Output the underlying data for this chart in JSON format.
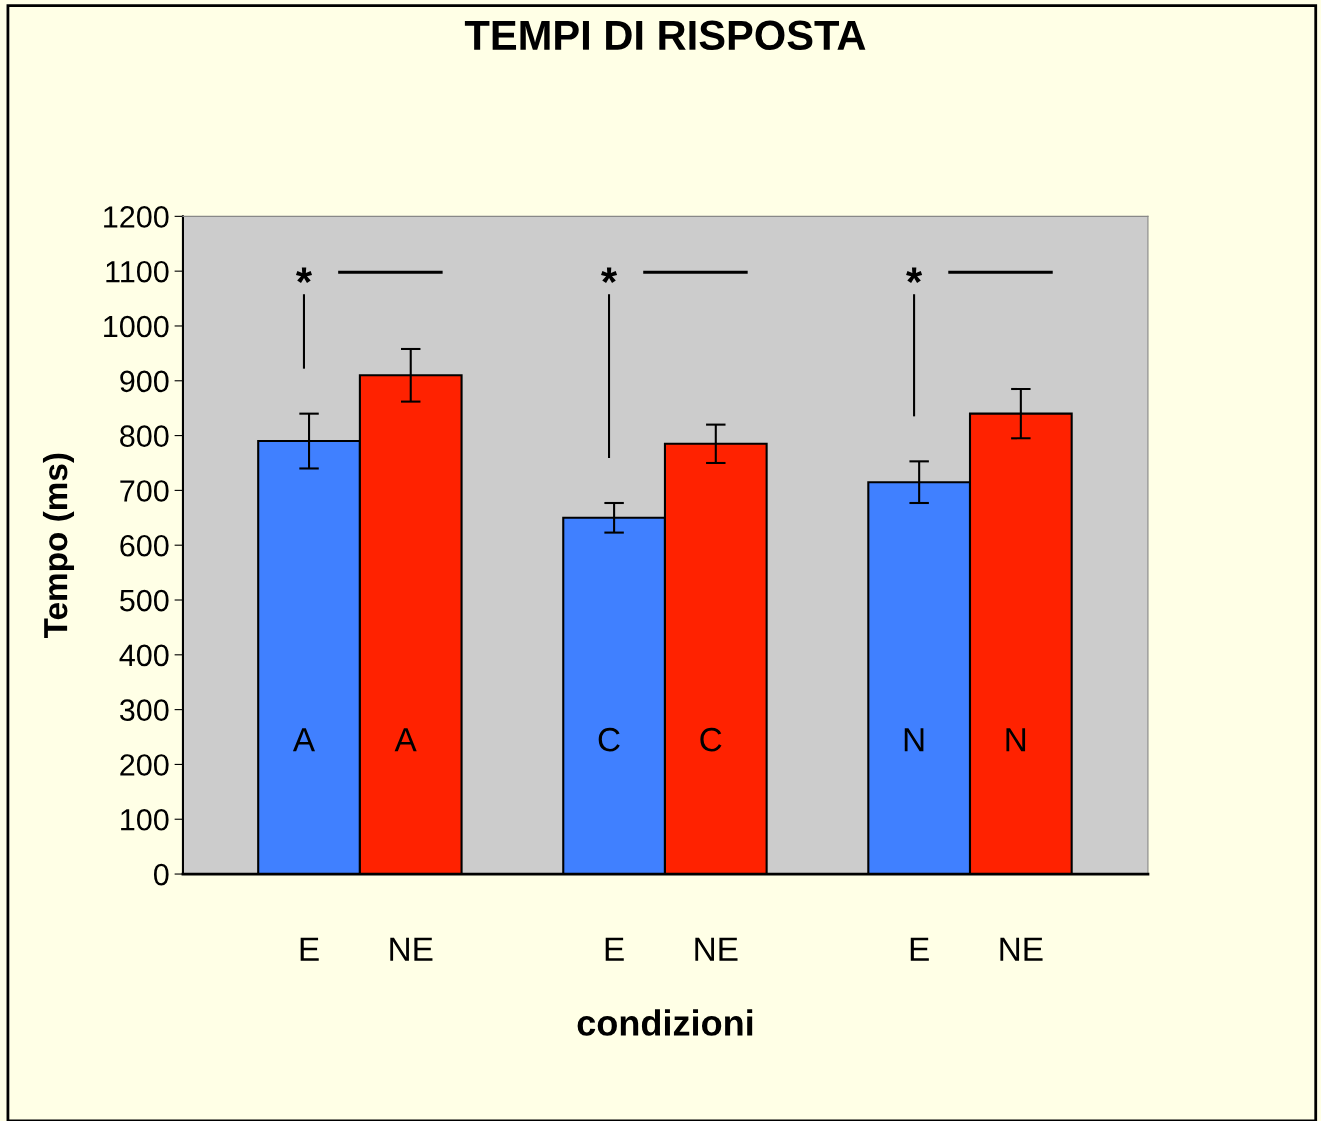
{
  "chart_data": {
    "type": "bar",
    "title": "TEMPI DI RISPOSTA",
    "xlabel": "condizioni",
    "ylabel": "Tempo (ms)",
    "categories": [
      "E",
      "NE",
      "E",
      "NE",
      "E",
      "NE"
    ],
    "values": [
      790,
      910,
      650,
      785,
      715,
      840
    ],
    "errors": [
      50,
      48,
      27,
      35,
      38,
      45
    ],
    "colors": [
      "#4080ff",
      "#ff2200",
      "#4080ff",
      "#ff2200",
      "#4080ff",
      "#ff2200"
    ],
    "value_labels": [
      "A",
      "A",
      "C",
      "C",
      "N",
      "N"
    ],
    "annotations": [
      "*",
      "*",
      "*"
    ],
    "ylim": [
      0,
      1200
    ],
    "yticks": [
      0,
      100,
      200,
      300,
      400,
      500,
      600,
      700,
      800,
      900,
      1000,
      1100,
      1200
    ],
    "grid": false,
    "legend": false
  }
}
